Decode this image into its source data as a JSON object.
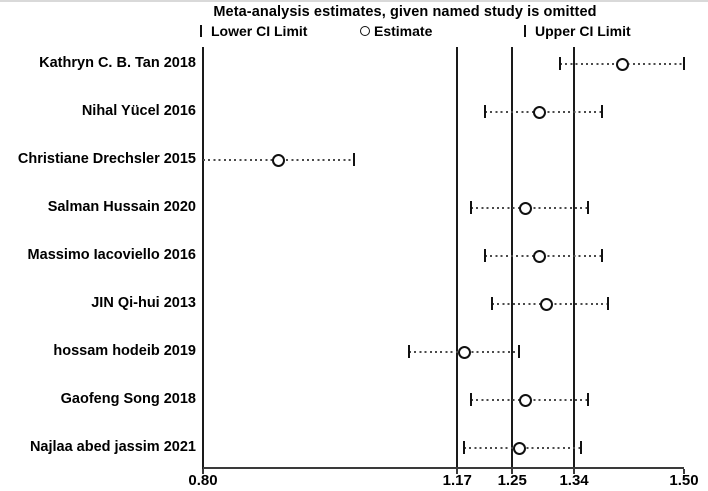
{
  "chart_data": {
    "type": "forest",
    "title": "Meta-analysis estimates, given named study is omitted",
    "legend": [
      {
        "marker": "pipe-icon",
        "label": "Lower CI Limit"
      },
      {
        "marker": "circle-icon",
        "label": "Estimate"
      },
      {
        "marker": "pipe-icon",
        "label": "Upper CI Limit"
      }
    ],
    "x_axis": {
      "range": [
        0.8,
        1.5
      ],
      "ticks": [
        0.8,
        1.17,
        1.25,
        1.34,
        1.5
      ],
      "tick_labels": [
        "0.80",
        "1.17",
        "1.25",
        "1.34",
        "1.50"
      ]
    },
    "reference_lines": [
      1.17,
      1.25,
      1.34
    ],
    "grid": false,
    "legend_position": "top",
    "studies": [
      {
        "label": "Kathryn C. B. Tan 2018",
        "lower": 1.32,
        "estimate": 1.41,
        "upper": 1.5
      },
      {
        "label": "Nihal Yücel 2016",
        "lower": 1.21,
        "estimate": 1.29,
        "upper": 1.38
      },
      {
        "label": "Christiane Drechsler 2015",
        "lower": 0.8,
        "estimate": 0.91,
        "upper": 1.02,
        "lower_clipped": true
      },
      {
        "label": "Salman Hussain 2020",
        "lower": 1.19,
        "estimate": 1.27,
        "upper": 1.36
      },
      {
        "label": "Massimo Iacoviello 2016",
        "lower": 1.21,
        "estimate": 1.29,
        "upper": 1.38
      },
      {
        "label": "JIN Qi-hui 2013",
        "lower": 1.22,
        "estimate": 1.3,
        "upper": 1.39
      },
      {
        "label": "hossam hodeib 2019",
        "lower": 1.1,
        "estimate": 1.18,
        "upper": 1.26
      },
      {
        "label": "Gaofeng Song 2018",
        "lower": 1.19,
        "estimate": 1.27,
        "upper": 1.36
      },
      {
        "label": "Najlaa abed jassim 2021",
        "lower": 1.18,
        "estimate": 1.26,
        "upper": 1.35
      }
    ],
    "colors": {
      "text": "#000000",
      "marker_line": "#1a1a1a",
      "axis": "#3a3a3a",
      "background": "#ffffff"
    }
  }
}
